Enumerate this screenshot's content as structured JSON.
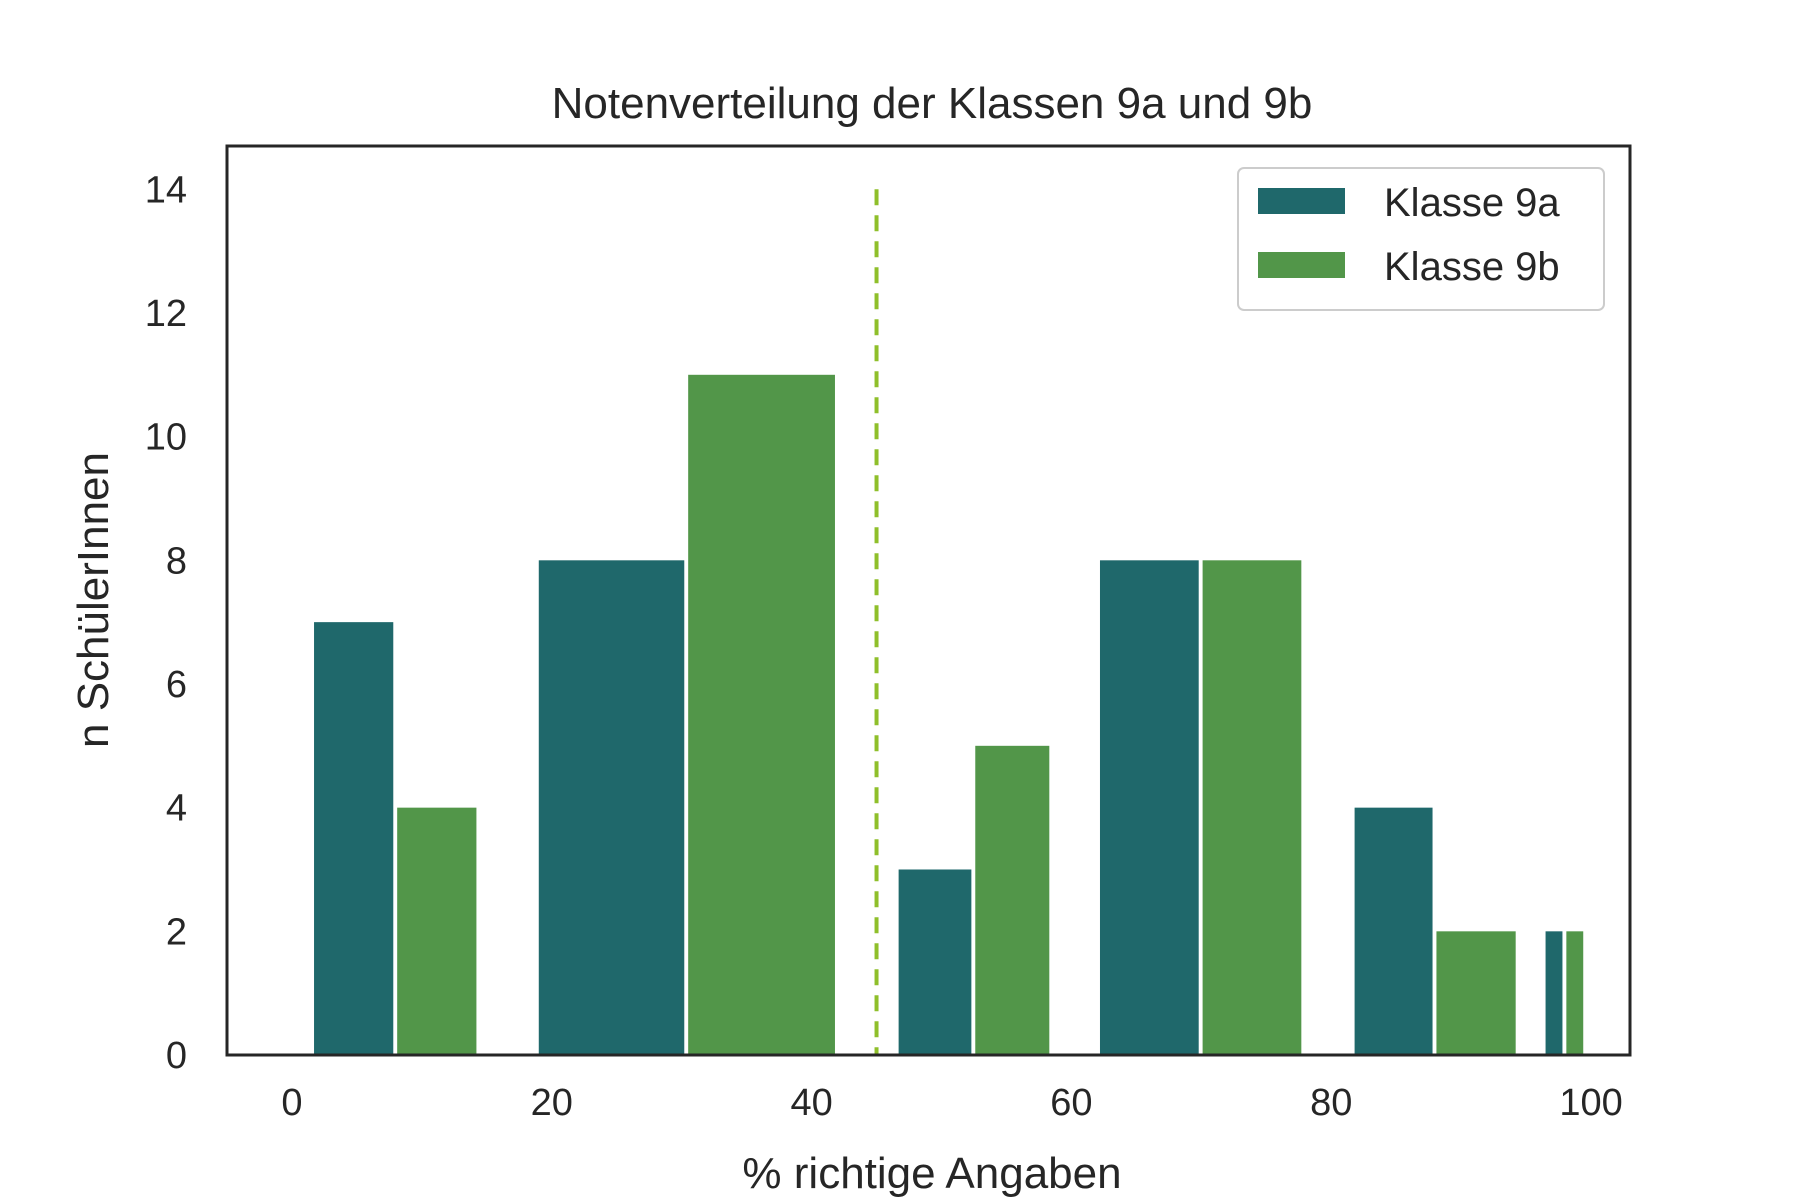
{
  "chart_data": {
    "type": "bar",
    "title": "Notenverteilung der Klassen 9a und 9b",
    "xlabel": "% richtige Angaben",
    "ylabel": "n SchülerInnen",
    "xlim": [
      -5,
      103
    ],
    "ylim": [
      0,
      14.7
    ],
    "xticks": [
      0,
      20,
      40,
      60,
      80,
      100
    ],
    "yticks": [
      0,
      2,
      4,
      6,
      8,
      10,
      12,
      14
    ],
    "grid": false,
    "legend_position": "top-right",
    "threshold_line": {
      "x": 45,
      "y_top": 14,
      "style": "dashed",
      "color": "#8fbf2a"
    },
    "series": [
      {
        "name": "Klasse 9a",
        "color": "#1f686b",
        "bars": [
          {
            "x0": 1.7,
            "x1": 7.8,
            "value": 7
          },
          {
            "x0": 19,
            "x1": 30.2,
            "value": 8
          },
          {
            "x0": 46.7,
            "x1": 52.3,
            "value": 3
          },
          {
            "x0": 62.2,
            "x1": 69.8,
            "value": 8
          },
          {
            "x0": 81.8,
            "x1": 87.8,
            "value": 4
          },
          {
            "x0": 96.5,
            "x1": 97.8,
            "value": 2
          }
        ]
      },
      {
        "name": "Klasse 9b",
        "color": "#529649",
        "bars": [
          {
            "x0": 8.1,
            "x1": 14.2,
            "value": 4
          },
          {
            "x0": 30.5,
            "x1": 41.8,
            "value": 11
          },
          {
            "x0": 52.6,
            "x1": 58.3,
            "value": 5
          },
          {
            "x0": 70.1,
            "x1": 77.7,
            "value": 8
          },
          {
            "x0": 88.1,
            "x1": 94.2,
            "value": 2
          },
          {
            "x0": 98.1,
            "x1": 99.4,
            "value": 2
          }
        ]
      }
    ]
  }
}
